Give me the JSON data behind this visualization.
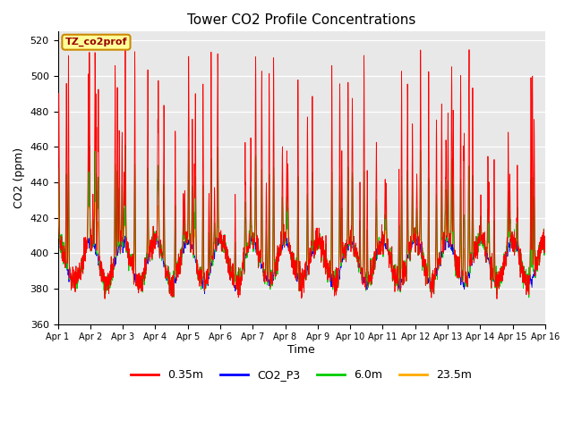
{
  "title": "Tower CO2 Profile Concentrations",
  "xlabel": "Time",
  "ylabel": "CO2 (ppm)",
  "ylim": [
    360,
    525
  ],
  "yticks": [
    360,
    380,
    400,
    420,
    440,
    460,
    480,
    500,
    520
  ],
  "background_color": "#e8e8e8",
  "series_colors": {
    "0.35m": "#ff0000",
    "CO2_P3": "#0000ff",
    "6.0m": "#00cc00",
    "23.5m": "#ffaa00"
  },
  "annotation_text": "TZ_co2prof",
  "annotation_bg": "#ffff99",
  "annotation_border": "#cc8800",
  "x_tick_labels": [
    "Apr 1",
    "Apr 2",
    "Apr 3",
    "Apr 4",
    "Apr 5",
    "Apr 6",
    "Apr 7",
    "Apr 8",
    "Apr 9",
    "Apr 10",
    "Apr 11",
    "Apr 12",
    "Apr 13",
    "Apr 14",
    "Apr 15",
    "Apr 16"
  ],
  "n_points": 2880,
  "seed": 7
}
